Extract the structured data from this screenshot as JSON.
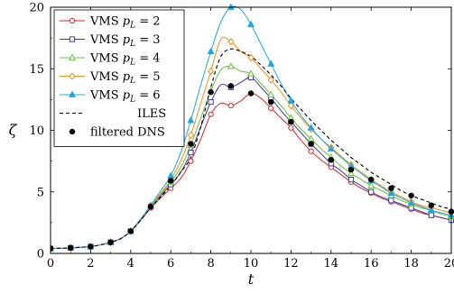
{
  "chart_data": {
    "type": "line",
    "xlabel": "t",
    "ylabel": "ζ",
    "xlim": [
      0,
      20
    ],
    "ylim": [
      0,
      20
    ],
    "xticks": [
      "0",
      "2",
      "4",
      "6",
      "8",
      "10",
      "12",
      "14",
      "16",
      "18",
      "20"
    ],
    "yticks": [
      "0",
      "5",
      "10",
      "15",
      "20"
    ],
    "legend_position": "top-left",
    "series": [
      {
        "name": "VMS p_L = 2",
        "legend_prefix": "VMS",
        "legend_math": "p",
        "legend_sub": "L",
        "legend_suffix": " = 2",
        "color": "#d62728",
        "marker": "circle-open",
        "line": "solid",
        "x": [
          0,
          0.5,
          1,
          1.5,
          2,
          2.5,
          3,
          3.5,
          4,
          4.5,
          5,
          5.5,
          6,
          6.5,
          7,
          7.5,
          8,
          8.5,
          9,
          9.5,
          10,
          10.5,
          11,
          11.5,
          12,
          12.5,
          13,
          13.5,
          14,
          14.5,
          15,
          15.5,
          16,
          16.5,
          17,
          17.5,
          18,
          18.5,
          19,
          19.5,
          20
        ],
        "y": [
          0.4,
          0.42,
          0.45,
          0.5,
          0.55,
          0.7,
          0.9,
          1.2,
          1.8,
          2.7,
          3.7,
          4.5,
          5.3,
          6.1,
          7.5,
          9.3,
          11.3,
          12.2,
          12.0,
          12.4,
          13.0,
          12.6,
          11.8,
          11.0,
          10.2,
          9.2,
          8.3,
          7.6,
          7.0,
          6.4,
          5.8,
          5.3,
          4.9,
          4.5,
          4.2,
          3.9,
          3.6,
          3.3,
          3.1,
          2.9,
          2.7
        ],
        "marker_x": [
          0,
          1,
          2,
          3,
          4,
          5,
          6,
          7,
          8,
          9,
          10,
          11,
          12,
          13,
          14,
          15,
          16,
          17,
          18,
          19,
          20
        ],
        "marker_y": [
          0.4,
          0.45,
          0.55,
          0.9,
          1.8,
          3.7,
          5.3,
          7.5,
          11.3,
          12.0,
          13.0,
          11.8,
          10.2,
          8.3,
          7.0,
          5.8,
          4.9,
          4.2,
          3.6,
          3.1,
          2.7
        ]
      },
      {
        "name": "VMS p_L = 3",
        "legend_prefix": "VMS",
        "legend_math": "p",
        "legend_sub": "L",
        "legend_suffix": " = 3",
        "color": "#3b3b9e",
        "marker": "square-open",
        "line": "solid",
        "x": [
          0,
          0.5,
          1,
          1.5,
          2,
          2.5,
          3,
          3.5,
          4,
          4.5,
          5,
          5.5,
          6,
          6.5,
          7,
          7.5,
          8,
          8.5,
          9,
          9.5,
          10,
          10.5,
          11,
          11.5,
          12,
          12.5,
          13,
          13.5,
          14,
          14.5,
          15,
          15.5,
          16,
          16.5,
          17,
          17.5,
          18,
          18.5,
          19,
          19.5,
          20
        ],
        "y": [
          0.4,
          0.42,
          0.45,
          0.5,
          0.55,
          0.7,
          0.9,
          1.2,
          1.8,
          2.75,
          3.8,
          4.7,
          5.6,
          6.6,
          8.2,
          10.3,
          12.3,
          13.7,
          13.5,
          13.9,
          14.3,
          13.5,
          12.6,
          11.6,
          10.7,
          9.8,
          8.9,
          8.1,
          7.3,
          6.7,
          6.0,
          5.5,
          5.0,
          4.6,
          4.3,
          4.0,
          3.7,
          3.4,
          3.1,
          2.9,
          2.7
        ],
        "marker_x": [
          0,
          1,
          2,
          3,
          4,
          5,
          6,
          7,
          8,
          9,
          10,
          11,
          12,
          13,
          14,
          15,
          16,
          17,
          18,
          19,
          20
        ],
        "marker_y": [
          0.4,
          0.45,
          0.55,
          0.9,
          1.8,
          3.8,
          5.6,
          8.2,
          12.3,
          13.5,
          14.3,
          12.6,
          10.7,
          8.9,
          7.3,
          6.0,
          5.0,
          4.3,
          3.7,
          3.1,
          2.7
        ]
      },
      {
        "name": "VMS p_L = 4",
        "legend_prefix": "VMS",
        "legend_math": "p",
        "legend_sub": "L",
        "legend_suffix": " = 4",
        "color": "#6abf3c",
        "marker": "triangle-open",
        "line": "solid",
        "x": [
          0,
          0.5,
          1,
          1.5,
          2,
          2.5,
          3,
          3.5,
          4,
          4.5,
          5,
          5.5,
          6,
          6.5,
          7,
          7.5,
          8,
          8.5,
          9,
          9.5,
          10,
          10.5,
          11,
          11.5,
          12,
          12.5,
          13,
          13.5,
          14,
          14.5,
          15,
          15.5,
          16,
          16.5,
          17,
          17.5,
          18,
          18.5,
          19,
          19.5,
          20
        ],
        "y": [
          0.4,
          0.42,
          0.45,
          0.5,
          0.55,
          0.7,
          0.9,
          1.2,
          1.8,
          2.8,
          3.8,
          4.8,
          5.8,
          7.0,
          8.8,
          11.0,
          13.2,
          14.9,
          15.2,
          14.8,
          14.6,
          13.8,
          12.9,
          12.0,
          11.0,
          10.1,
          9.3,
          8.5,
          7.8,
          7.1,
          6.5,
          6.0,
          5.5,
          5.1,
          4.7,
          4.3,
          4.0,
          3.7,
          3.5,
          3.2,
          3.0
        ],
        "marker_x": [
          0,
          1,
          2,
          3,
          4,
          5,
          6,
          7,
          8,
          9,
          10,
          11,
          12,
          13,
          14,
          15,
          16,
          17,
          18,
          19,
          20
        ],
        "marker_y": [
          0.4,
          0.45,
          0.55,
          0.9,
          1.8,
          3.8,
          5.8,
          8.8,
          13.2,
          15.2,
          14.6,
          12.9,
          11.0,
          9.3,
          7.8,
          6.5,
          5.5,
          4.7,
          4.0,
          3.5,
          3.0
        ]
      },
      {
        "name": "VMS p_L = 5",
        "legend_prefix": "VMS",
        "legend_math": "p",
        "legend_sub": "L",
        "legend_suffix": " = 5",
        "color": "#f28e1c",
        "marker": "diamond-open",
        "line": "solid",
        "x": [
          0,
          0.5,
          1,
          1.5,
          2,
          2.5,
          3,
          3.5,
          4,
          4.5,
          5,
          5.5,
          6,
          6.5,
          7,
          7.5,
          8,
          8.5,
          9,
          9.5,
          10,
          10.5,
          11,
          11.5,
          12,
          12.5,
          13,
          13.5,
          14,
          14.5,
          15,
          15.5,
          16,
          16.5,
          17,
          17.5,
          18,
          18.5,
          19,
          19.5,
          20
        ],
        "y": [
          0.4,
          0.42,
          0.45,
          0.5,
          0.55,
          0.7,
          0.9,
          1.2,
          1.8,
          2.8,
          3.9,
          4.9,
          6.0,
          7.5,
          9.6,
          12.2,
          14.8,
          17.4,
          17.2,
          16.4,
          15.9,
          15.0,
          14.1,
          13.1,
          12.0,
          11.0,
          10.1,
          9.3,
          8.6,
          7.9,
          7.2,
          6.6,
          6.0,
          5.5,
          5.0,
          4.6,
          4.2,
          3.9,
          3.7,
          3.5,
          3.3
        ],
        "marker_x": [
          0,
          1,
          2,
          3,
          4,
          5,
          6,
          7,
          8,
          9,
          10,
          11,
          12,
          13,
          14,
          15,
          16,
          17,
          18,
          19,
          20
        ],
        "marker_y": [
          0.4,
          0.45,
          0.55,
          0.9,
          1.8,
          3.9,
          6.0,
          9.6,
          14.8,
          17.2,
          15.9,
          14.1,
          12.0,
          10.1,
          8.6,
          7.2,
          6.0,
          5.0,
          4.2,
          3.7,
          3.3
        ]
      },
      {
        "name": "VMS p_L = 6",
        "legend_prefix": "VMS",
        "legend_math": "p",
        "legend_sub": "L",
        "legend_suffix": " = 6",
        "color": "#1ca7e0",
        "marker": "triangle-filled",
        "line": "solid",
        "x": [
          0,
          0.5,
          1,
          1.5,
          2,
          2.5,
          3,
          3.5,
          4,
          4.5,
          5,
          5.5,
          6,
          6.5,
          7,
          7.5,
          8,
          8.5,
          9,
          9.5,
          10,
          10.5,
          11,
          11.5,
          12,
          12.5,
          13,
          13.5,
          14,
          14.5,
          15,
          15.5,
          16,
          16.5,
          17,
          17.5,
          18,
          18.5,
          19,
          19.5,
          20
        ],
        "y": [
          0.4,
          0.42,
          0.45,
          0.5,
          0.55,
          0.7,
          0.9,
          1.2,
          1.8,
          2.8,
          3.9,
          5.1,
          6.3,
          8.2,
          10.8,
          13.7,
          16.4,
          18.8,
          20.0,
          19.8,
          18.6,
          17.0,
          15.4,
          13.8,
          12.4,
          11.2,
          10.2,
          9.3,
          8.5,
          7.8,
          7.1,
          6.5,
          5.9,
          5.4,
          4.9,
          4.5,
          4.1,
          3.8,
          3.5,
          3.3,
          3.1
        ],
        "marker_x": [
          0,
          1,
          2,
          3,
          4,
          5,
          6,
          7,
          8,
          9,
          10,
          11,
          12,
          13,
          14,
          15,
          16,
          17,
          18,
          19,
          20
        ],
        "marker_y": [
          0.4,
          0.45,
          0.55,
          0.9,
          1.8,
          3.9,
          6.3,
          10.8,
          16.4,
          20.0,
          18.6,
          15.4,
          12.4,
          10.2,
          8.5,
          7.1,
          5.9,
          4.9,
          4.1,
          3.5,
          3.1
        ]
      },
      {
        "name": "ILES",
        "color": "#000000",
        "marker": "none",
        "line": "dashed",
        "x": [
          0,
          0.5,
          1,
          1.5,
          2,
          2.5,
          3,
          3.5,
          4,
          4.5,
          5,
          5.5,
          6,
          6.5,
          7,
          7.5,
          8,
          8.5,
          9,
          9.5,
          10,
          10.5,
          11,
          11.5,
          12,
          12.5,
          13,
          13.5,
          14,
          14.5,
          15,
          15.5,
          16,
          16.5,
          17,
          17.5,
          18,
          18.5,
          19,
          19.5,
          20
        ],
        "y": [
          0.4,
          0.42,
          0.45,
          0.5,
          0.55,
          0.7,
          0.9,
          1.2,
          1.8,
          2.7,
          3.7,
          4.6,
          5.5,
          6.6,
          7.8,
          10.3,
          13.5,
          16.0,
          16.6,
          16.4,
          16.0,
          15.3,
          14.5,
          13.6,
          12.6,
          11.7,
          10.8,
          10.0,
          9.2,
          8.5,
          7.8,
          7.2,
          6.6,
          6.1,
          5.6,
          5.1,
          4.7,
          4.4,
          4.1,
          3.8,
          3.6
        ],
        "marker_x": [],
        "marker_y": []
      },
      {
        "name": "filtered DNS",
        "color": "#000000",
        "marker": "dot-filled",
        "line": "none",
        "x": [],
        "y": [],
        "marker_x": [
          0,
          1,
          2,
          3,
          4,
          5,
          6,
          7,
          8,
          9,
          10,
          11,
          12,
          13,
          14,
          15,
          16,
          17,
          18,
          19,
          20
        ],
        "marker_y": [
          0.4,
          0.45,
          0.55,
          0.9,
          1.8,
          3.8,
          5.9,
          8.9,
          13.1,
          13.6,
          13.0,
          12.3,
          10.7,
          8.9,
          7.6,
          6.8,
          6.0,
          5.3,
          4.7,
          3.9,
          3.4
        ]
      }
    ]
  }
}
